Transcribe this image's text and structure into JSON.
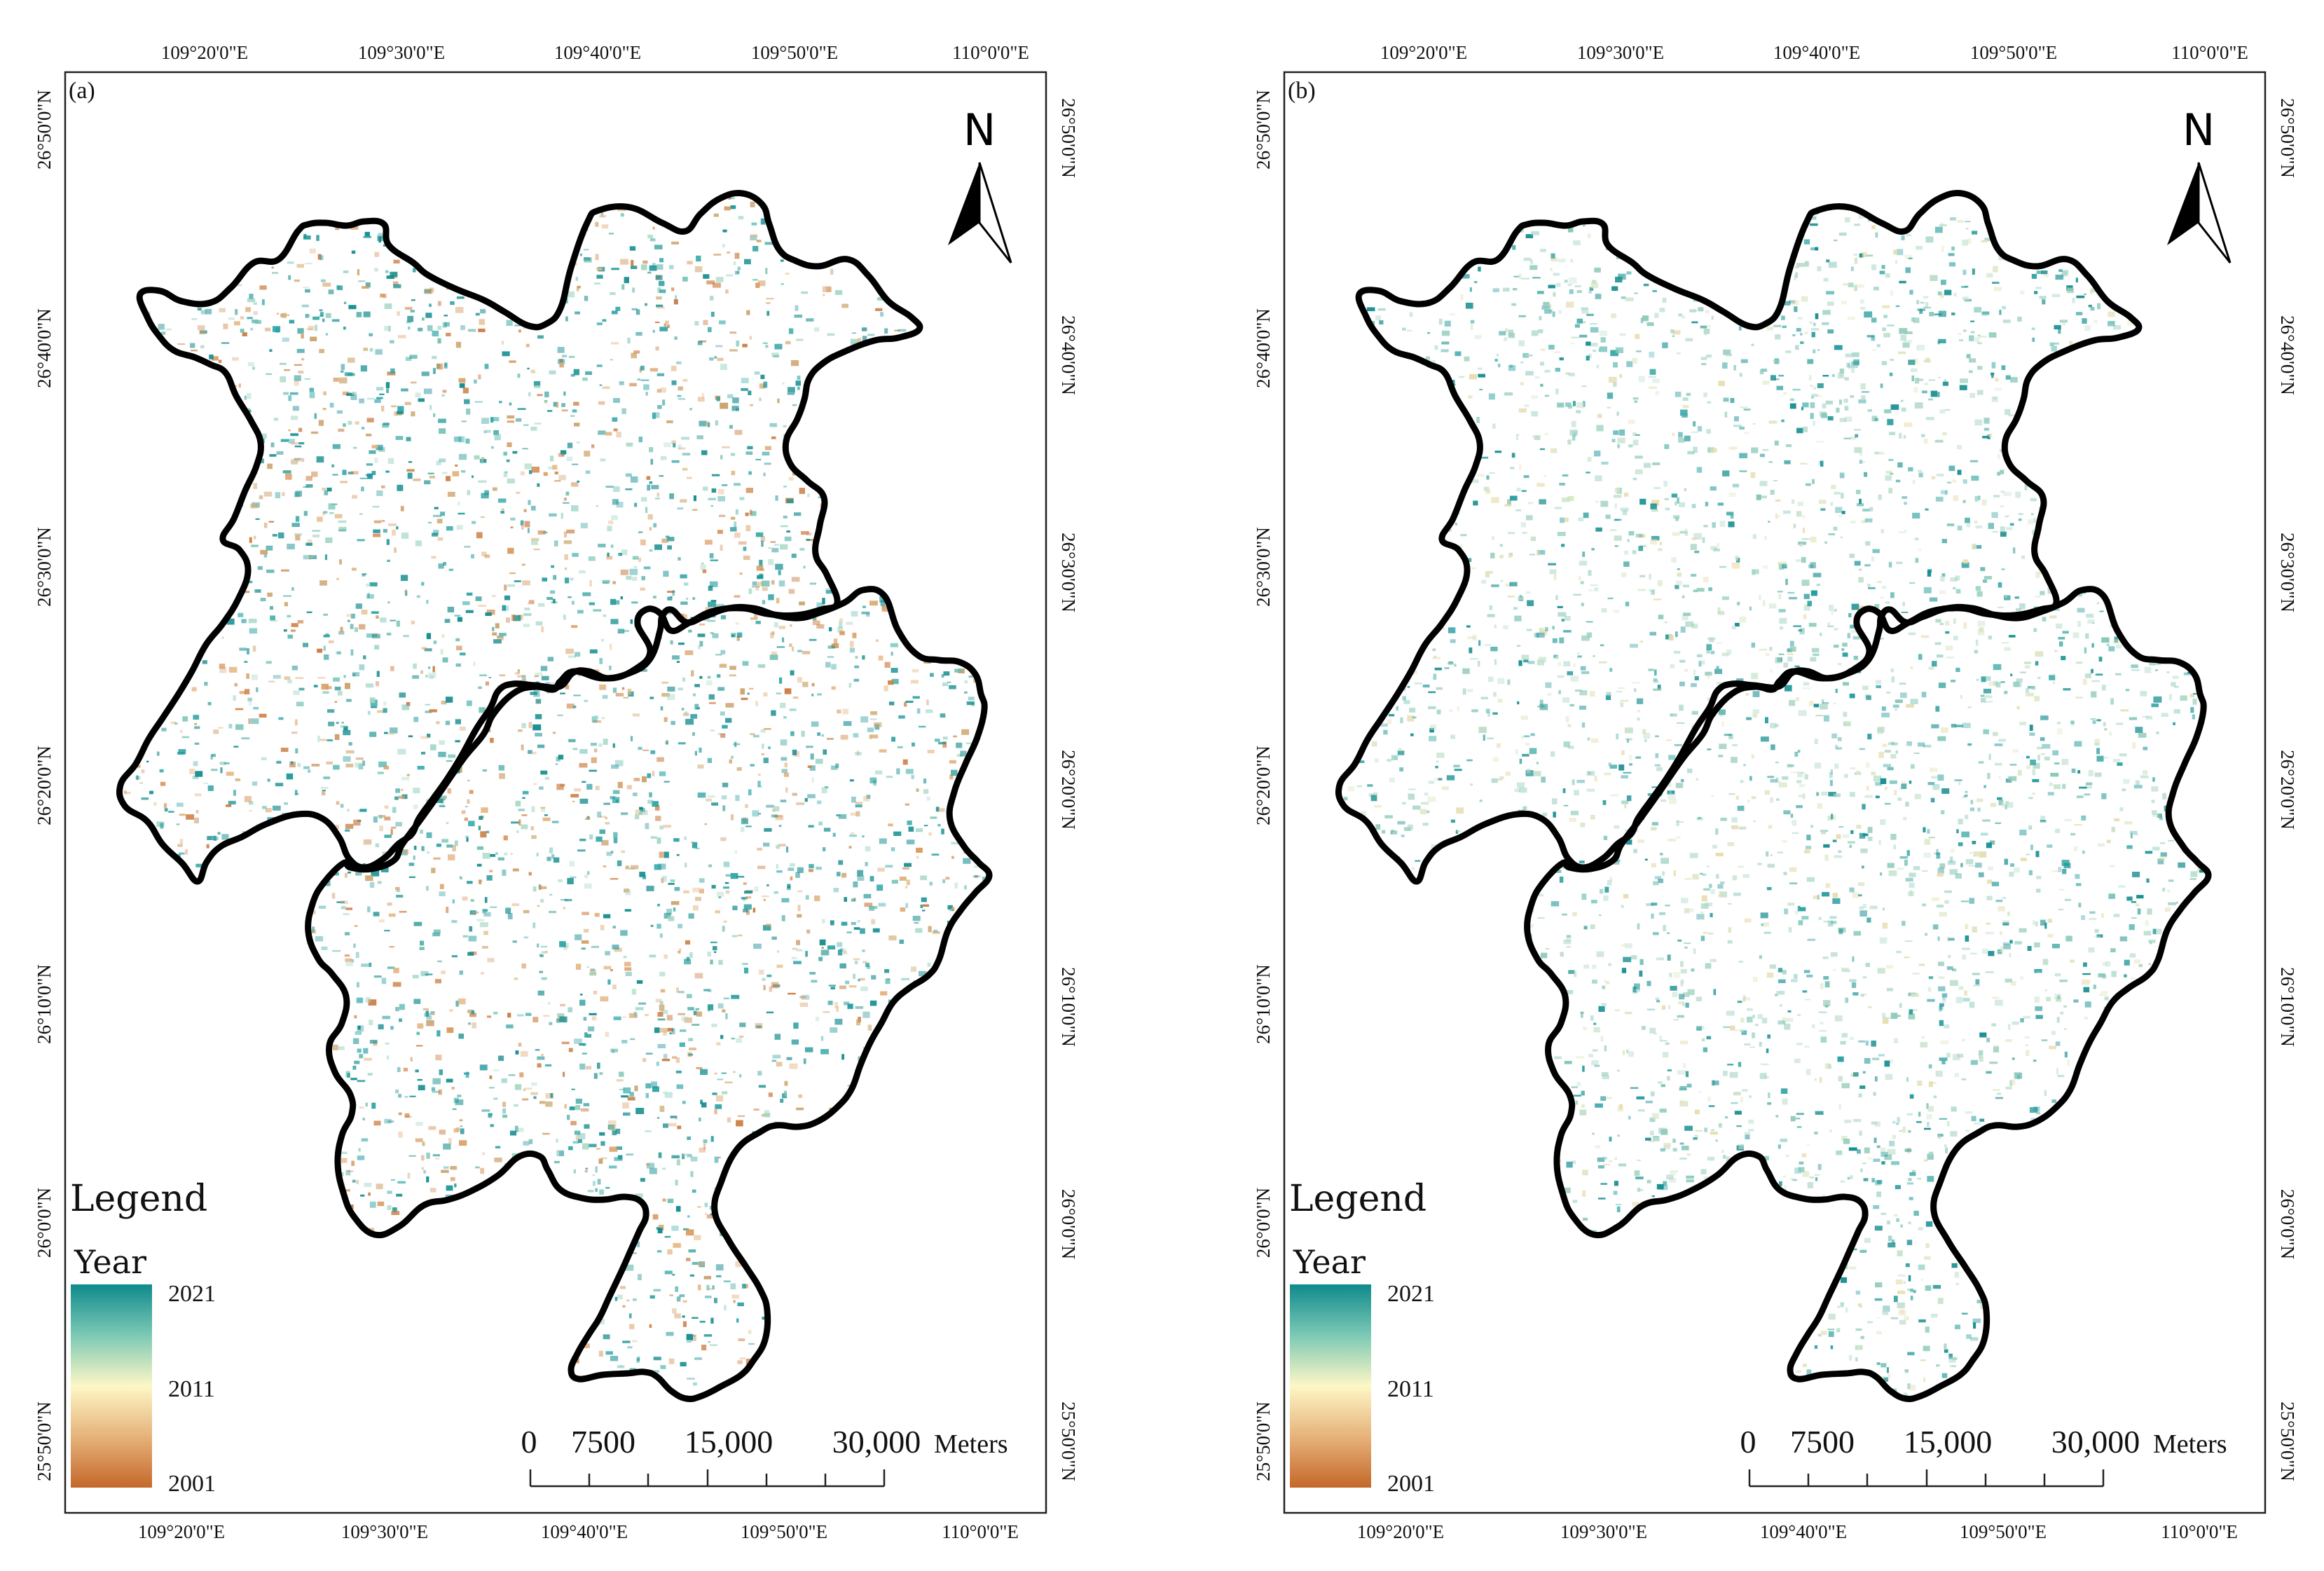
{
  "panels": [
    {
      "label": "(a)",
      "variant": "a",
      "lon_ticks": [
        "109°20'0\"E",
        "109°30'0\"E",
        "109°40'0\"E",
        "109°50'0\"E",
        "110°0'0\"E"
      ],
      "lat_ticks": [
        "26°50'0\"N",
        "26°40'0\"N",
        "26°30'0\"N",
        "26°20'0\"N",
        "26°10'0\"N",
        "26°0'0\"N",
        "25°50'0\"N"
      ],
      "north_label": "N",
      "legend": {
        "title": "Legend",
        "subtitle": "Year",
        "max": "2021",
        "mid": "2011",
        "min": "2001"
      },
      "scale": {
        "labels": [
          "0",
          "7500",
          "15,000",
          "30,000"
        ],
        "unit": "Meters"
      }
    },
    {
      "label": "(b)",
      "variant": "b",
      "lon_ticks": [
        "109°20'0\"E",
        "109°30'0\"E",
        "109°40'0\"E",
        "109°50'0\"E",
        "110°0'0\"E"
      ],
      "lat_ticks": [
        "26°50'0\"N",
        "26°40'0\"N",
        "26°30'0\"N",
        "26°20'0\"N",
        "26°10'0\"N",
        "26°0'0\"N",
        "25°50'0\"N"
      ],
      "north_label": "N",
      "legend": {
        "title": "Legend",
        "subtitle": "Year",
        "max": "2021",
        "mid": "2011",
        "min": "2001"
      },
      "scale": {
        "labels": [
          "0",
          "7500",
          "15,000",
          "30,000"
        ],
        "unit": "Meters"
      }
    }
  ],
  "colors": {
    "ramp_top": "#0f8a8c",
    "ramp_upper": "#7cc9b5",
    "ramp_mid": "#fdf7c6",
    "ramp_lower": "#e6b27a",
    "ramp_bottom": "#c4682a",
    "boundary": "#000000"
  }
}
